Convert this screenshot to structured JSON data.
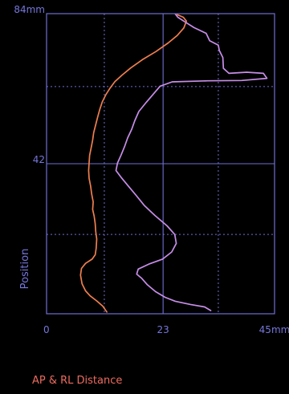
{
  "chart_data": {
    "type": "line",
    "title": "",
    "xlabel": "",
    "ylabel": "Position",
    "legend_label": "AP & RL Distance",
    "xlim": [
      0,
      45
    ],
    "ylim": [
      0,
      84
    ],
    "grid": true,
    "x_ticks": [
      {
        "value": 0,
        "label": "0"
      },
      {
        "value": 23,
        "label": "23"
      },
      {
        "value": 45,
        "label": "45mm"
      }
    ],
    "y_ticks": [
      {
        "value": 84,
        "label": "84mm"
      },
      {
        "value": 42,
        "label": "42"
      }
    ],
    "gridlines": {
      "x_solid": [
        23
      ],
      "x_dashed": [
        11.4,
        33.9
      ],
      "y_solid": [
        42
      ],
      "y_dashed": [
        63.6,
        22.2
      ]
    },
    "colors": {
      "background": "#000000",
      "frame": "#6e6ed2",
      "text": "#7676dc",
      "legend": "#ee6b5e"
    },
    "series": [
      {
        "color": "#ee7f4f",
        "points": [
          [
            11.9,
            0.5
          ],
          [
            11.1,
            2.1
          ],
          [
            9.9,
            3.6
          ],
          [
            8.6,
            5.0
          ],
          [
            7.7,
            6.4
          ],
          [
            7.0,
            8.4
          ],
          [
            6.7,
            10.8
          ],
          [
            6.9,
            12.7
          ],
          [
            7.7,
            14.1
          ],
          [
            9.0,
            15.3
          ],
          [
            9.6,
            16.5
          ],
          [
            9.8,
            18.3
          ],
          [
            9.9,
            20.9
          ],
          [
            9.7,
            23.1
          ],
          [
            9.6,
            25.2
          ],
          [
            9.4,
            27.3
          ],
          [
            9.1,
            29.2
          ],
          [
            9.2,
            31.3
          ],
          [
            8.9,
            33.5
          ],
          [
            8.7,
            35.7
          ],
          [
            8.4,
            37.9
          ],
          [
            8.3,
            40.1
          ],
          [
            8.4,
            42.2
          ],
          [
            8.5,
            44.3
          ],
          [
            8.8,
            46.4
          ],
          [
            9.1,
            48.6
          ],
          [
            9.3,
            50.7
          ],
          [
            9.7,
            52.9
          ],
          [
            10.1,
            55.1
          ],
          [
            10.5,
            57.2
          ],
          [
            11.0,
            59.3
          ],
          [
            11.7,
            61.3
          ],
          [
            12.6,
            63.3
          ],
          [
            13.5,
            65.0
          ],
          [
            14.9,
            66.8
          ],
          [
            16.6,
            68.8
          ],
          [
            18.9,
            71.1
          ],
          [
            21.6,
            73.4
          ],
          [
            24.0,
            75.8
          ],
          [
            25.8,
            77.9
          ],
          [
            27.1,
            80.0
          ],
          [
            27.6,
            81.9
          ],
          [
            27.0,
            83.0
          ],
          [
            25.8,
            83.7
          ]
        ]
      },
      {
        "color": "#c78ee8",
        "points": [
          [
            32.4,
            0.9
          ],
          [
            31.2,
            1.9
          ],
          [
            28.4,
            2.6
          ],
          [
            25.4,
            3.5
          ],
          [
            23.4,
            4.6
          ],
          [
            21.5,
            6.2
          ],
          [
            19.9,
            8.1
          ],
          [
            18.8,
            9.9
          ],
          [
            17.8,
            11.1
          ],
          [
            18.1,
            12.5
          ],
          [
            20.2,
            13.9
          ],
          [
            22.9,
            15.3
          ],
          [
            24.7,
            17.3
          ],
          [
            25.6,
            19.7
          ],
          [
            25.3,
            22.2
          ],
          [
            23.8,
            24.6
          ],
          [
            21.4,
            27.5
          ],
          [
            19.3,
            30.3
          ],
          [
            17.7,
            33.1
          ],
          [
            16.1,
            35.8
          ],
          [
            14.7,
            38.2
          ],
          [
            13.7,
            40.1
          ],
          [
            14.0,
            42.2
          ],
          [
            14.7,
            44.4
          ],
          [
            15.4,
            46.8
          ],
          [
            16.0,
            49.2
          ],
          [
            16.8,
            51.6
          ],
          [
            17.4,
            54.0
          ],
          [
            18.2,
            56.6
          ],
          [
            19.7,
            59.2
          ],
          [
            21.2,
            61.7
          ],
          [
            22.4,
            63.7
          ],
          [
            24.8,
            64.9
          ],
          [
            31.8,
            65.2
          ],
          [
            38.5,
            65.3
          ],
          [
            43.5,
            65.9
          ],
          [
            42.8,
            67.3
          ],
          [
            39.5,
            67.6
          ],
          [
            36.0,
            67.3
          ],
          [
            34.9,
            68.7
          ],
          [
            34.8,
            71.7
          ],
          [
            34.1,
            73.7
          ],
          [
            33.9,
            75.2
          ],
          [
            32.2,
            76.4
          ],
          [
            31.5,
            78.5
          ],
          [
            29.1,
            80.1
          ],
          [
            27.2,
            81.8
          ],
          [
            25.9,
            83.0
          ],
          [
            25.4,
            83.9
          ]
        ]
      }
    ]
  }
}
